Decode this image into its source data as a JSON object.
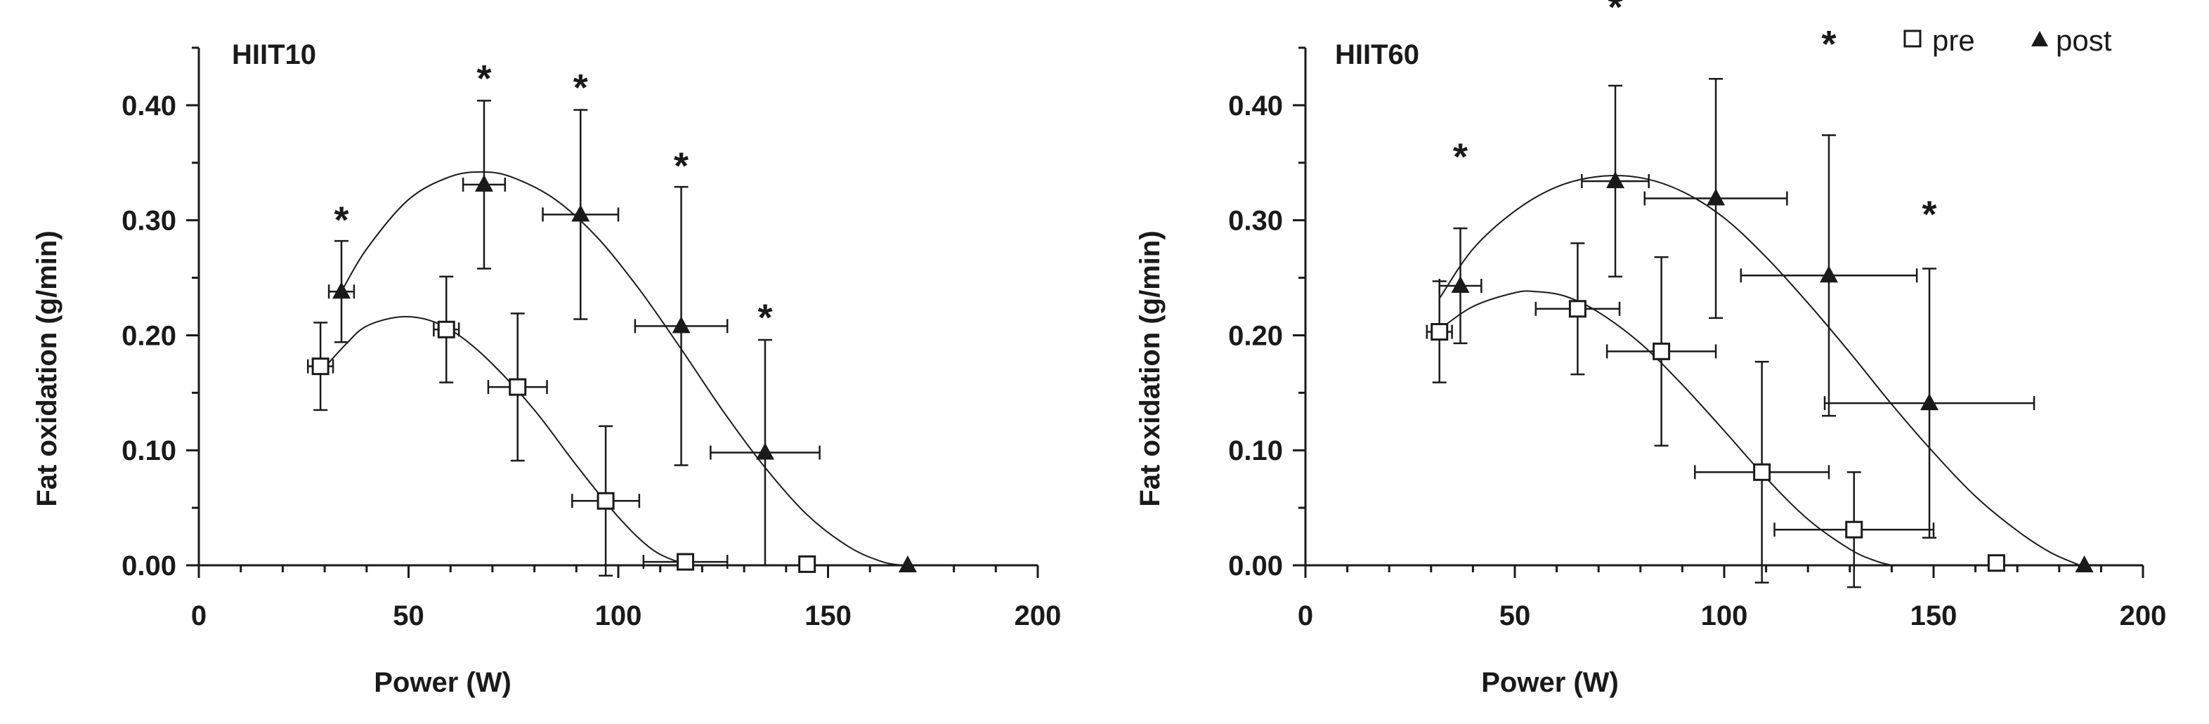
{
  "legend": {
    "pre_label": "pre",
    "post_label": "post"
  },
  "chart_data": [
    {
      "type": "scatter",
      "title": "HIIT10",
      "xlabel": "Power (W)",
      "ylabel": "Fat oxidation (g/min)",
      "xlim": [
        0,
        200
      ],
      "ylim": [
        0,
        0.45
      ],
      "x_ticks": [
        0,
        50,
        100,
        150,
        200
      ],
      "y_ticks": [
        0.0,
        0.1,
        0.2,
        0.3,
        0.4
      ],
      "x_tick_labels": [
        "0",
        "50",
        "100",
        "150",
        "200"
      ],
      "y_tick_labels": [
        "0.00",
        "0.10",
        "0.20",
        "0.30",
        "0.40"
      ],
      "grid": false,
      "legend_position": "top-right",
      "series": [
        {
          "name": "pre",
          "marker": "open-square",
          "points": [
            {
              "x": 29,
              "y": 0.173,
              "xerr": 3,
              "yerr": 0.038
            },
            {
              "x": 59,
              "y": 0.205,
              "xerr": 3,
              "yerr": 0.046
            },
            {
              "x": 76,
              "y": 0.155,
              "xerr": 7,
              "yerr": 0.064
            },
            {
              "x": 97,
              "y": 0.056,
              "xerr": 8,
              "yerr": 0.065
            },
            {
              "x": 116,
              "y": 0.003,
              "xerr": 10,
              "yerr": 0
            },
            {
              "x": 145,
              "y": 0.001,
              "xerr": 0,
              "yerr": 0
            }
          ],
          "fit_curve": [
            {
              "x": 29,
              "y": 0.168
            },
            {
              "x": 35,
              "y": 0.192
            },
            {
              "x": 40,
              "y": 0.208
            },
            {
              "x": 48,
              "y": 0.216
            },
            {
              "x": 55,
              "y": 0.213
            },
            {
              "x": 62,
              "y": 0.2
            },
            {
              "x": 70,
              "y": 0.175
            },
            {
              "x": 80,
              "y": 0.135
            },
            {
              "x": 90,
              "y": 0.087
            },
            {
              "x": 100,
              "y": 0.042
            },
            {
              "x": 108,
              "y": 0.014
            },
            {
              "x": 115,
              "y": 0.002
            },
            {
              "x": 118,
              "y": 0.0
            }
          ]
        },
        {
          "name": "post",
          "marker": "filled-triangle",
          "points": [
            {
              "x": 34,
              "y": 0.238,
              "xerr": 3,
              "yerr": 0.044
            },
            {
              "x": 68,
              "y": 0.331,
              "xerr": 5,
              "yerr": 0.073
            },
            {
              "x": 91,
              "y": 0.305,
              "xerr": 9,
              "yerr": 0.091
            },
            {
              "x": 115,
              "y": 0.208,
              "xerr": 11,
              "yerr": 0.121
            },
            {
              "x": 135,
              "y": 0.098,
              "xerr": 13,
              "yerr": 0.098
            },
            {
              "x": 169,
              "y": 0.0,
              "xerr": 0,
              "yerr": 0
            }
          ],
          "fit_curve": [
            {
              "x": 34,
              "y": 0.238
            },
            {
              "x": 40,
              "y": 0.275
            },
            {
              "x": 50,
              "y": 0.318
            },
            {
              "x": 60,
              "y": 0.338
            },
            {
              "x": 68,
              "y": 0.342
            },
            {
              "x": 75,
              "y": 0.337
            },
            {
              "x": 85,
              "y": 0.318
            },
            {
              "x": 95,
              "y": 0.285
            },
            {
              "x": 105,
              "y": 0.24
            },
            {
              "x": 115,
              "y": 0.188
            },
            {
              "x": 125,
              "y": 0.134
            },
            {
              "x": 135,
              "y": 0.085
            },
            {
              "x": 145,
              "y": 0.044
            },
            {
              "x": 155,
              "y": 0.016
            },
            {
              "x": 163,
              "y": 0.003
            },
            {
              "x": 168,
              "y": 0.0
            }
          ]
        }
      ],
      "annotations": [
        {
          "text": "*",
          "x": 34,
          "y": 0.305
        },
        {
          "text": "*",
          "x": 68,
          "y": 0.428
        },
        {
          "text": "*",
          "x": 91,
          "y": 0.42
        },
        {
          "text": "*",
          "x": 115,
          "y": 0.352
        },
        {
          "text": "*",
          "x": 135,
          "y": 0.22
        }
      ]
    },
    {
      "type": "scatter",
      "title": "HIIT60",
      "xlabel": "Power (W)",
      "ylabel": "Fat oxidation  (g/min)",
      "xlim": [
        0,
        200
      ],
      "ylim": [
        0,
        0.45
      ],
      "x_ticks": [
        0,
        50,
        100,
        150,
        200
      ],
      "y_ticks": [
        0.0,
        0.1,
        0.2,
        0.3,
        0.4
      ],
      "x_tick_labels": [
        "0",
        "50",
        "100",
        "150",
        "200"
      ],
      "y_tick_labels": [
        "0.00",
        "0.10",
        "0.20",
        "0.30",
        "0.40"
      ],
      "grid": false,
      "series": [
        {
          "name": "pre",
          "marker": "open-square",
          "points": [
            {
              "x": 32,
              "y": 0.203,
              "xerr": 3,
              "yerr": 0.044
            },
            {
              "x": 65,
              "y": 0.223,
              "xerr": 10,
              "yerr": 0.057
            },
            {
              "x": 85,
              "y": 0.186,
              "xerr": 13,
              "yerr": 0.082
            },
            {
              "x": 109,
              "y": 0.081,
              "xerr": 16,
              "yerr": 0.096
            },
            {
              "x": 131,
              "y": 0.031,
              "xerr": 19,
              "yerr": 0.05
            },
            {
              "x": 165,
              "y": 0.002,
              "xerr": 0,
              "yerr": 0
            }
          ],
          "fit_curve": [
            {
              "x": 32,
              "y": 0.205
            },
            {
              "x": 40,
              "y": 0.225
            },
            {
              "x": 50,
              "y": 0.237
            },
            {
              "x": 55,
              "y": 0.238
            },
            {
              "x": 62,
              "y": 0.234
            },
            {
              "x": 70,
              "y": 0.22
            },
            {
              "x": 80,
              "y": 0.193
            },
            {
              "x": 90,
              "y": 0.157
            },
            {
              "x": 100,
              "y": 0.117
            },
            {
              "x": 110,
              "y": 0.076
            },
            {
              "x": 120,
              "y": 0.04
            },
            {
              "x": 130,
              "y": 0.014
            },
            {
              "x": 136,
              "y": 0.004
            },
            {
              "x": 140,
              "y": 0.0
            }
          ]
        },
        {
          "name": "post",
          "marker": "filled-triangle",
          "points": [
            {
              "x": 37,
              "y": 0.243,
              "xerr": 5,
              "yerr": 0.05
            },
            {
              "x": 74,
              "y": 0.334,
              "xerr": 8,
              "yerr": 0.083
            },
            {
              "x": 98,
              "y": 0.319,
              "xerr": 17,
              "yerr": 0.104
            },
            {
              "x": 125,
              "y": 0.252,
              "xerr": 21,
              "yerr": 0.122
            },
            {
              "x": 149,
              "y": 0.141,
              "xerr": 25,
              "yerr": 0.117
            },
            {
              "x": 186,
              "y": 0.0,
              "xerr": 0,
              "yerr": 0
            }
          ],
          "fit_curve": [
            {
              "x": 32,
              "y": 0.232
            },
            {
              "x": 40,
              "y": 0.275
            },
            {
              "x": 50,
              "y": 0.308
            },
            {
              "x": 60,
              "y": 0.329
            },
            {
              "x": 70,
              "y": 0.338
            },
            {
              "x": 80,
              "y": 0.337
            },
            {
              "x": 90,
              "y": 0.325
            },
            {
              "x": 100,
              "y": 0.302
            },
            {
              "x": 110,
              "y": 0.268
            },
            {
              "x": 120,
              "y": 0.228
            },
            {
              "x": 130,
              "y": 0.185
            },
            {
              "x": 140,
              "y": 0.14
            },
            {
              "x": 150,
              "y": 0.098
            },
            {
              "x": 160,
              "y": 0.06
            },
            {
              "x": 170,
              "y": 0.03
            },
            {
              "x": 178,
              "y": 0.011
            },
            {
              "x": 185,
              "y": 0.0
            }
          ]
        }
      ],
      "annotations": [
        {
          "text": "*",
          "x": 37,
          "y": 0.36
        },
        {
          "text": "*",
          "x": 74,
          "y": 0.49
        },
        {
          "text": "*",
          "x": 98,
          "y": 0.5
        },
        {
          "text": "*",
          "x": 125,
          "y": 0.458
        },
        {
          "text": "*",
          "x": 149,
          "y": 0.31
        }
      ]
    }
  ]
}
